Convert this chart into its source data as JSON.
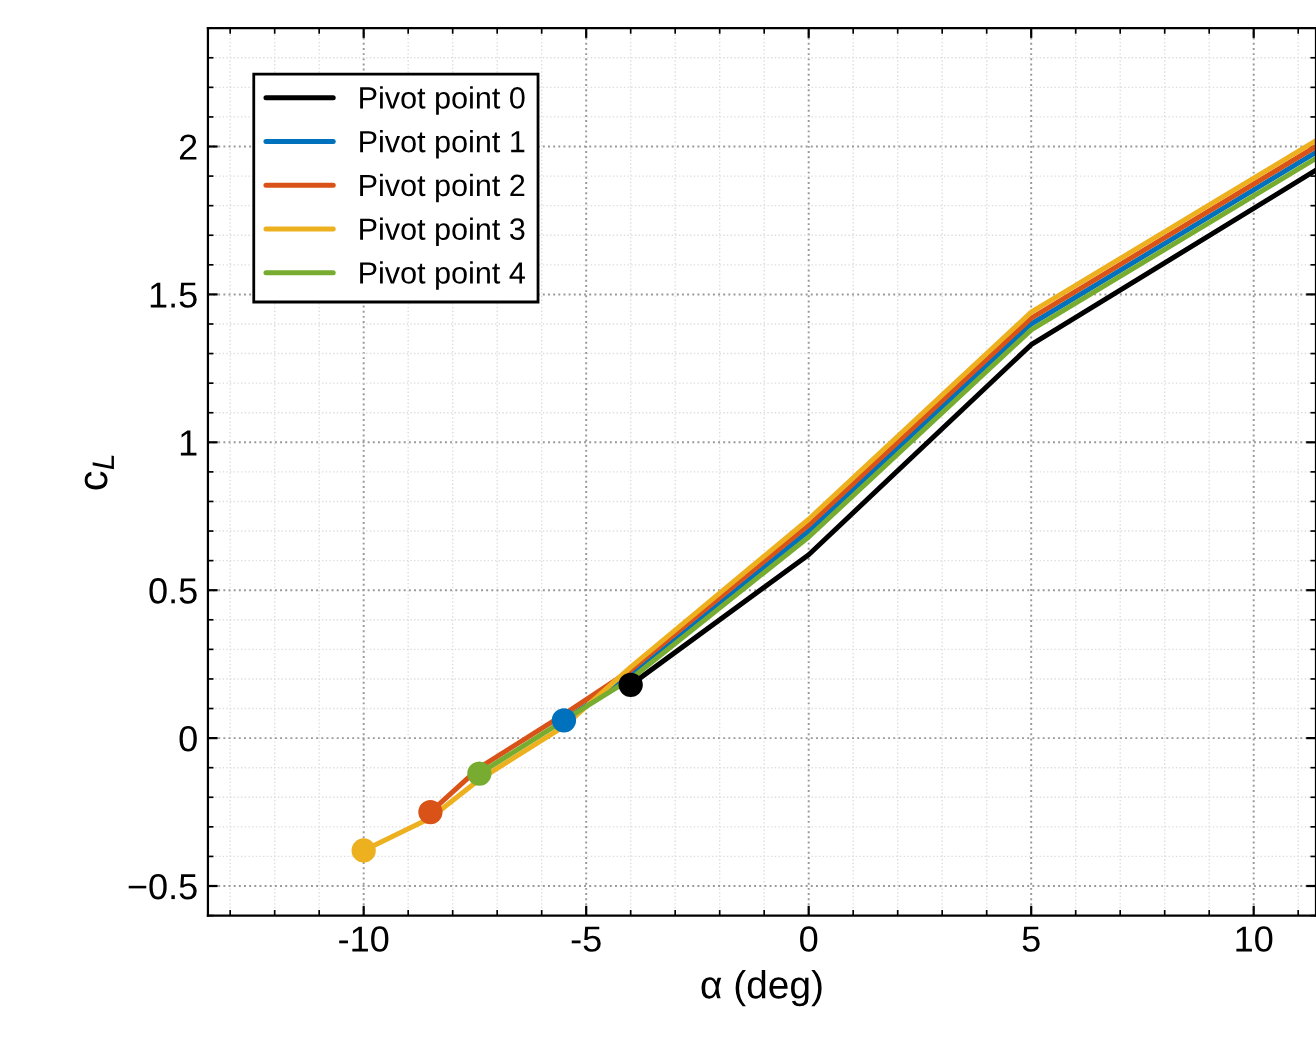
{
  "chart_data": {
    "type": "line",
    "xlabel": "α (deg)",
    "ylabel": "c$_{L}$",
    "xlim": [
      -13.5,
      11.4
    ],
    "ylim": [
      -0.6,
      2.4
    ],
    "xticks": [
      -10,
      -5,
      0,
      5,
      10
    ],
    "yticks": [
      {
        "value": -0.5,
        "label": "−0.5"
      },
      0,
      0.5,
      1,
      1.5,
      2
    ],
    "grid": true,
    "legend": "top left",
    "line_style": "solid",
    "series": [
      {
        "name": "Pivot point 0",
        "color": "#000000",
        "x": [
          -4,
          0,
          5,
          11.4
        ],
        "values": [
          0.18,
          0.62,
          1.33,
          1.92
        ]
      },
      {
        "name": "Pivot point 1",
        "color": "#0072bd",
        "x": [
          -5.5,
          -4,
          0,
          5,
          11.4
        ],
        "values": [
          0.06,
          0.21,
          0.7,
          1.4,
          1.98
        ]
      },
      {
        "name": "Pivot point 2",
        "color": "#d95319",
        "x": [
          -8.5,
          -7.4,
          -5.5,
          -4,
          0,
          5,
          11.4
        ],
        "values": [
          -0.25,
          -0.1,
          0.08,
          0.23,
          0.72,
          1.42,
          2.0
        ]
      },
      {
        "name": "Pivot point 3",
        "color": "#edb120",
        "x": [
          -10,
          -8.5,
          -7.4,
          -5.5,
          -4,
          0,
          5,
          11.4
        ],
        "values": [
          -0.38,
          -0.27,
          -0.14,
          0.04,
          0.24,
          0.74,
          1.44,
          2.02
        ]
      },
      {
        "name": "Pivot point 4",
        "color": "#77ac30",
        "x": [
          -7.4,
          -5.5,
          -4,
          0,
          5,
          11.4
        ],
        "values": [
          -0.12,
          0.06,
          0.2,
          0.68,
          1.38,
          1.96
        ]
      },
      {
        "type": "scatter",
        "marker": "circle",
        "color": "#000000",
        "x": [
          -4
        ],
        "values": [
          0.18
        ]
      },
      {
        "type": "scatter",
        "marker": "circle",
        "color": "#0072bd",
        "x": [
          -5.5
        ],
        "values": [
          0.06
        ]
      },
      {
        "type": "scatter",
        "marker": "circle",
        "color": "#d95319",
        "x": [
          -8.5
        ],
        "values": [
          -0.25
        ]
      },
      {
        "type": "scatter",
        "marker": "circle",
        "color": "#edb120",
        "x": [
          -10
        ],
        "values": [
          -0.38
        ]
      },
      {
        "type": "scatter",
        "marker": "circle",
        "color": "#77ac30",
        "x": [
          -7.4
        ],
        "values": [
          -0.12
        ]
      }
    ]
  }
}
